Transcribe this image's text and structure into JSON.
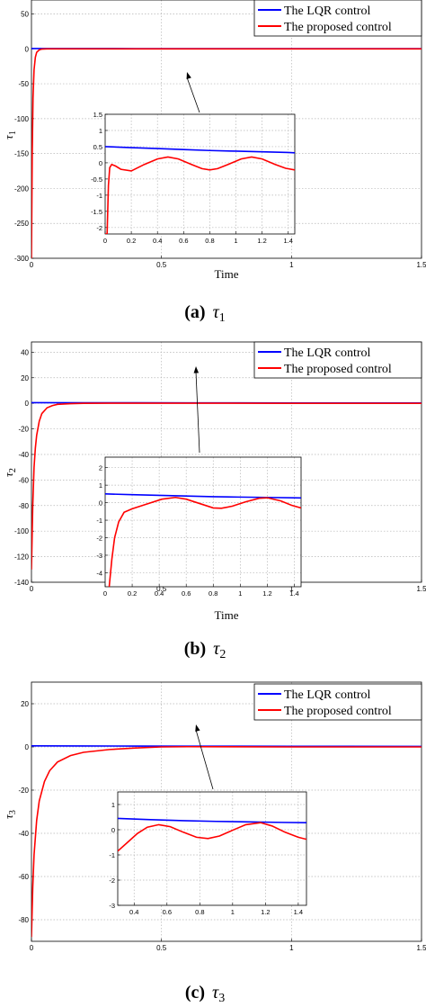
{
  "chart_data": [
    {
      "type": "line",
      "caption": "(a)",
      "caption_symbol": "τ",
      "caption_subscript": "1",
      "ylabel": "τ",
      "ylabel_subscript": "1",
      "xlabel": "Time",
      "xlim": [
        0,
        1.5
      ],
      "ylim": [
        -300,
        70
      ],
      "xticks": [
        0,
        0.5,
        1,
        1.5
      ],
      "xtick_labels": [
        "0",
        "0.5",
        "1",
        "1.5"
      ],
      "yticks": [
        50,
        0,
        -50,
        -100,
        -150,
        -200,
        -250,
        -300
      ],
      "ytick_labels": [
        "50",
        "0",
        "-50",
        "-100",
        "-150",
        "-200",
        "-250",
        "-300"
      ],
      "grid": true,
      "legend": "top-right",
      "series": [
        {
          "name": "The LQR control",
          "color": "#0000ff",
          "x": [
            0,
            0.2,
            0.4,
            0.6,
            0.8,
            1.0,
            1.2,
            1.5
          ],
          "y": [
            0.5,
            0.45,
            0.4,
            0.35,
            0.32,
            0.3,
            0.28,
            0.25
          ]
        },
        {
          "name": "The proposed control",
          "color": "#ff0000",
          "x": [
            0,
            0.003,
            0.006,
            0.01,
            0.015,
            0.02,
            0.03,
            0.04,
            0.06,
            0.1,
            0.2,
            0.5,
            1.0,
            1.5
          ],
          "y": [
            -300,
            -150,
            -70,
            -30,
            -12,
            -5,
            -1.5,
            -0.3,
            0,
            0,
            0,
            0,
            0,
            0
          ]
        }
      ],
      "inset": {
        "xlim": [
          0,
          1.45
        ],
        "ylim": [
          -2.2,
          1.5
        ],
        "xticks": [
          0,
          0.2,
          0.4,
          0.6,
          0.8,
          1,
          1.2,
          1.4
        ],
        "xtick_labels": [
          "0",
          "0.2",
          "0.4",
          "0.6",
          "0.8",
          "1",
          "1.2",
          "1.4"
        ],
        "yticks": [
          1.5,
          1,
          0.5,
          0,
          -0.5,
          -1,
          -1.5,
          -2
        ],
        "ytick_labels": [
          "1.5",
          "1",
          "0.5",
          "0",
          "-0.5",
          "-1",
          "-1.5",
          "-2"
        ],
        "series": [
          {
            "color": "#0000ff",
            "x": [
              0,
              0.2,
              0.4,
              0.6,
              0.8,
              1.0,
              1.2,
              1.4,
              1.45
            ],
            "y": [
              0.5,
              0.47,
              0.44,
              0.41,
              0.38,
              0.36,
              0.34,
              0.32,
              0.31
            ]
          },
          {
            "color": "#ff0000",
            "x": [
              0,
              0.015,
              0.025,
              0.035,
              0.05,
              0.08,
              0.12,
              0.2,
              0.3,
              0.4,
              0.48,
              0.56,
              0.66,
              0.74,
              0.8,
              0.86,
              0.94,
              1.04,
              1.12,
              1.2,
              1.3,
              1.38,
              1.45
            ],
            "y": [
              -2.2,
              -2.2,
              -0.7,
              -0.15,
              -0.05,
              -0.1,
              -0.2,
              -0.25,
              -0.05,
              0.12,
              0.18,
              0.12,
              -0.05,
              -0.18,
              -0.22,
              -0.18,
              -0.05,
              0.12,
              0.18,
              0.12,
              -0.05,
              -0.17,
              -0.22
            ]
          }
        ]
      }
    },
    {
      "type": "line",
      "caption": "(b)",
      "caption_symbol": "τ",
      "caption_subscript": "2",
      "ylabel": "τ",
      "ylabel_subscript": "2",
      "xlabel": "Time",
      "xlim": [
        0,
        1.5
      ],
      "ylim": [
        -140,
        48
      ],
      "xticks": [
        0,
        0.5,
        1,
        1.5
      ],
      "xtick_labels": [
        "0",
        "0.5",
        "1",
        "1.5"
      ],
      "yticks": [
        40,
        20,
        0,
        -20,
        -40,
        -60,
        -80,
        -100,
        -120,
        -140
      ],
      "ytick_labels": [
        "40",
        "20",
        "0",
        "-20",
        "-40",
        "-60",
        "-80",
        "-100",
        "-120",
        "-140"
      ],
      "grid": true,
      "legend": "top-right",
      "series": [
        {
          "name": "The LQR control",
          "color": "#0000ff",
          "x": [
            0,
            0.2,
            0.4,
            0.6,
            0.8,
            1.0,
            1.2,
            1.5
          ],
          "y": [
            0.5,
            0.45,
            0.4,
            0.35,
            0.32,
            0.3,
            0.28,
            0.25
          ]
        },
        {
          "name": "The proposed control",
          "color": "#ff0000",
          "x": [
            0,
            0.005,
            0.01,
            0.015,
            0.02,
            0.03,
            0.04,
            0.06,
            0.08,
            0.1,
            0.15,
            0.2,
            0.3,
            0.5,
            1.0,
            1.5
          ],
          "y": [
            -130,
            -80,
            -50,
            -35,
            -25,
            -14,
            -8,
            -3.5,
            -1.8,
            -0.8,
            -0.3,
            0,
            0.1,
            0.1,
            0,
            0
          ]
        }
      ],
      "inset": {
        "xlim": [
          0,
          1.45
        ],
        "ylim": [
          -4.8,
          2.6
        ],
        "xticks": [
          0,
          0.2,
          0.4,
          0.6,
          0.8,
          1,
          1.2,
          1.4
        ],
        "xtick_labels": [
          "0",
          "0.2",
          "0.4",
          "0.6",
          "0.8",
          "1",
          "1.2",
          "1.4"
        ],
        "yticks": [
          2,
          1,
          0,
          -1,
          -2,
          -3,
          -4
        ],
        "ytick_labels": [
          "2",
          "1",
          "0",
          "-1",
          "-2",
          "-3",
          "-4"
        ],
        "series": [
          {
            "color": "#0000ff",
            "x": [
              0,
              0.2,
              0.4,
              0.6,
              0.8,
              1.0,
              1.2,
              1.4,
              1.45
            ],
            "y": [
              0.5,
              0.46,
              0.42,
              0.38,
              0.34,
              0.32,
              0.3,
              0.28,
              0.27
            ]
          },
          {
            "color": "#ff0000",
            "x": [
              0.03,
              0.05,
              0.07,
              0.1,
              0.14,
              0.2,
              0.3,
              0.42,
              0.52,
              0.6,
              0.7,
              0.8,
              0.86,
              0.94,
              1.04,
              1.14,
              1.2,
              1.3,
              1.38,
              1.45
            ],
            "y": [
              -4.8,
              -3.2,
              -2.0,
              -1.1,
              -0.55,
              -0.35,
              -0.1,
              0.2,
              0.3,
              0.2,
              -0.05,
              -0.3,
              -0.32,
              -0.2,
              0.05,
              0.25,
              0.28,
              0.1,
              -0.15,
              -0.3
            ]
          }
        ]
      }
    },
    {
      "type": "line",
      "caption": "(c)",
      "caption_symbol": "τ",
      "caption_subscript": "3",
      "ylabel": "τ",
      "ylabel_subscript": "3",
      "xlabel": "",
      "xlim": [
        0,
        1.5
      ],
      "ylim": [
        -90,
        30
      ],
      "xticks": [
        0,
        0.5,
        1,
        1.5
      ],
      "xtick_labels": [
        "0",
        "0.5",
        "1",
        "1.5"
      ],
      "yticks": [
        20,
        0,
        -20,
        -40,
        -60,
        -80
      ],
      "ytick_labels": [
        "20",
        "0",
        "-20",
        "-40",
        "-60",
        "-80"
      ],
      "grid": true,
      "legend": "top-right",
      "series": [
        {
          "name": "The LQR control",
          "color": "#0000ff",
          "x": [
            0,
            0.2,
            0.4,
            0.6,
            0.8,
            1.0,
            1.2,
            1.5
          ],
          "y": [
            0.5,
            0.45,
            0.4,
            0.35,
            0.32,
            0.3,
            0.28,
            0.25
          ]
        },
        {
          "name": "The proposed control",
          "color": "#ff0000",
          "x": [
            0,
            0.005,
            0.01,
            0.02,
            0.03,
            0.05,
            0.07,
            0.1,
            0.15,
            0.2,
            0.3,
            0.4,
            0.5,
            0.6,
            1.0,
            1.5
          ],
          "y": [
            -88,
            -65,
            -50,
            -34,
            -25,
            -16,
            -11,
            -7,
            -4,
            -2.5,
            -1.2,
            -0.5,
            0,
            0.1,
            0,
            0
          ]
        }
      ],
      "inset": {
        "xlim": [
          0.3,
          1.45
        ],
        "ylim": [
          -3,
          1.5
        ],
        "xticks": [
          0.4,
          0.6,
          0.8,
          1,
          1.2,
          1.4
        ],
        "xtick_labels": [
          "0.4",
          "0.6",
          "0.8",
          "1",
          "1.2",
          "1.4"
        ],
        "yticks": [
          1,
          0,
          -1,
          -2,
          -3
        ],
        "ytick_labels": [
          "1",
          "0",
          "-1",
          "-2",
          "-3"
        ],
        "series": [
          {
            "color": "#0000ff",
            "x": [
              0.3,
              0.5,
              0.7,
              0.9,
              1.1,
              1.3,
              1.45
            ],
            "y": [
              0.45,
              0.4,
              0.36,
              0.33,
              0.31,
              0.29,
              0.28
            ]
          },
          {
            "color": "#ff0000",
            "x": [
              0.3,
              0.36,
              0.42,
              0.48,
              0.55,
              0.62,
              0.7,
              0.78,
              0.85,
              0.92,
              1.0,
              1.08,
              1.17,
              1.24,
              1.32,
              1.4,
              1.45
            ],
            "y": [
              -0.85,
              -0.5,
              -0.15,
              0.1,
              0.2,
              0.12,
              -0.1,
              -0.3,
              -0.35,
              -0.25,
              -0.02,
              0.2,
              0.28,
              0.15,
              -0.1,
              -0.3,
              -0.38
            ]
          }
        ]
      }
    }
  ]
}
